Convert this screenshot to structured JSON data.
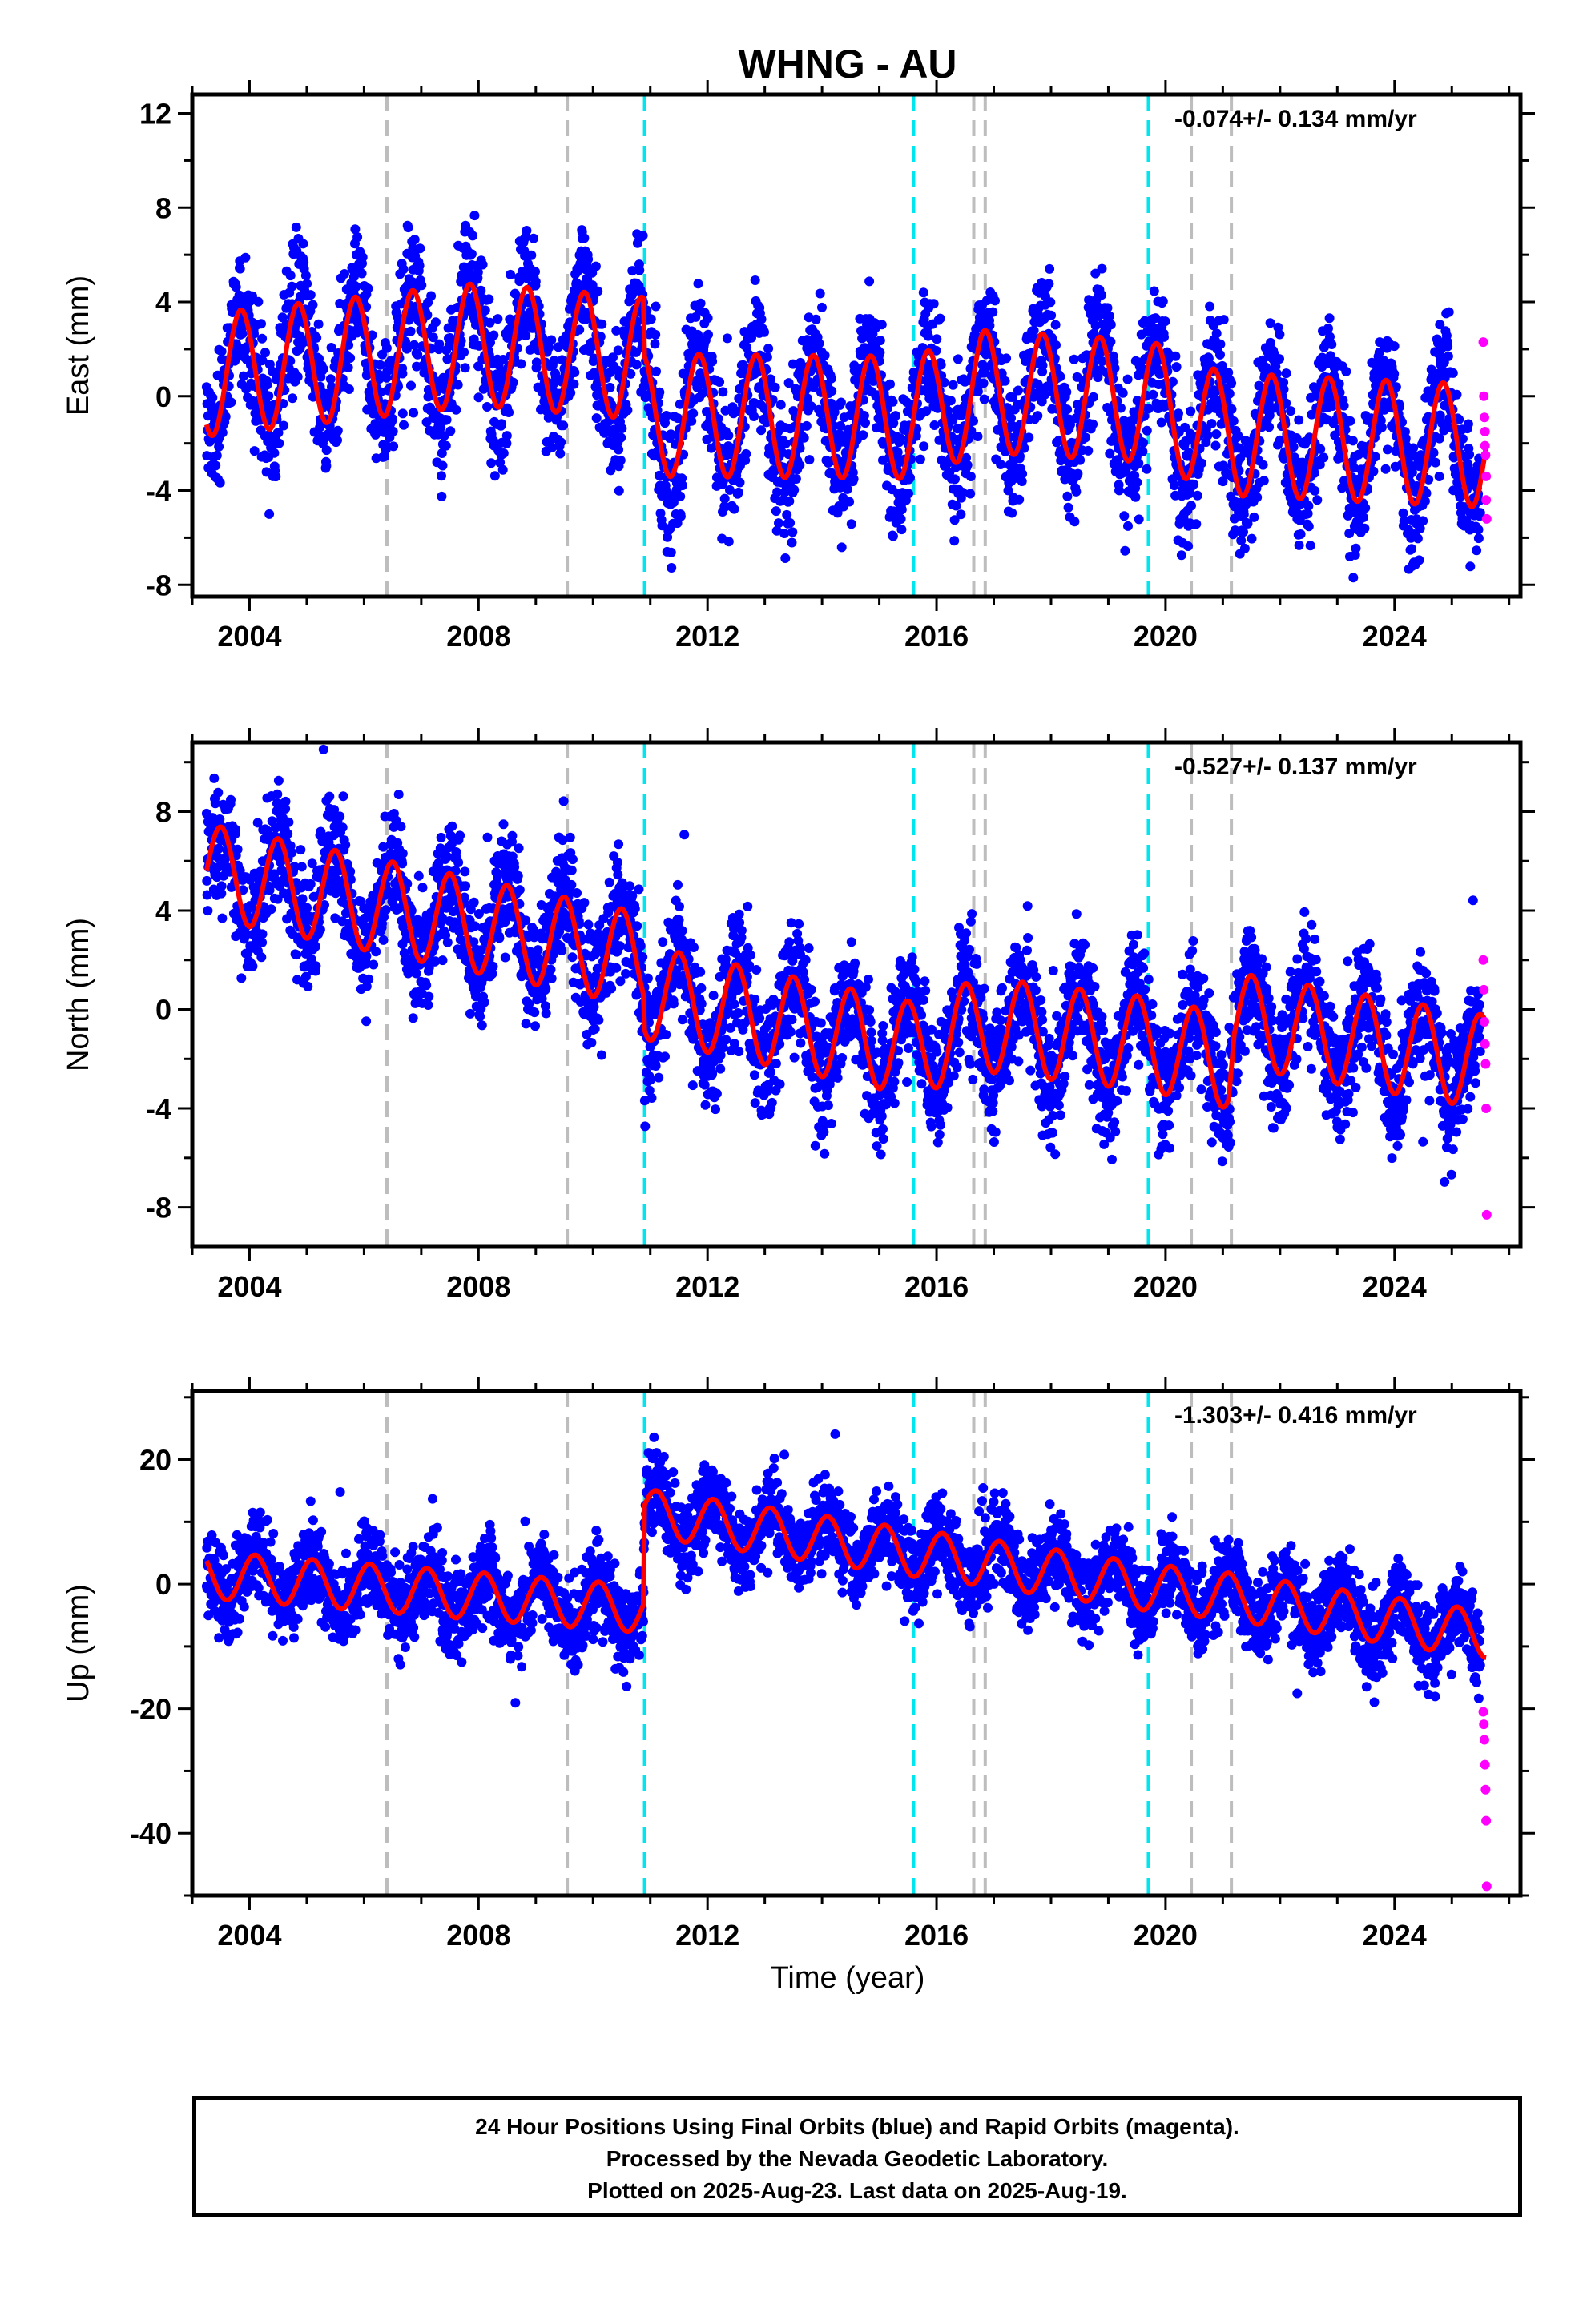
{
  "figure": {
    "title": "WHNG - AU",
    "xlabel": "Time (year)",
    "footer": [
      "24 Hour Positions Using Final Orbits (blue) and Rapid Orbits (magenta).",
      "Processed by the Nevada Geodetic Laboratory.",
      "Plotted on 2025-Aug-23. Last data on 2025-Aug-19."
    ],
    "colors": {
      "final_orbits": "#0000ff",
      "rapid_orbits": "#ff00ff",
      "model_fit": "#ff0000",
      "antenna_change_line": "#00e5ee",
      "equipment_change_line": "#bdbdbd"
    }
  },
  "chart_data": [
    {
      "type": "scatter",
      "component": "East",
      "ylabel": "East (mm)",
      "rate_label": "-0.074+/- 0.134 mm/yr",
      "xlim": [
        2003.0,
        2026.2
      ],
      "ylim": [
        -8.5,
        12.8
      ],
      "x_ticks": [
        2004,
        2008,
        2012,
        2016,
        2020,
        2024
      ],
      "y_ticks": [
        -8,
        -4,
        0,
        4,
        8,
        12
      ],
      "grid": false,
      "series": [
        {
          "name": "Final Orbits",
          "style": "points",
          "start": 2003.25,
          "end": 2025.5,
          "trend": [
            [
              2003.25,
              0.9
            ],
            [
              2008.0,
              2.2
            ],
            [
              2010.88,
              1.6
            ],
            [
              2010.9,
              -0.8
            ],
            [
              2015.6,
              -0.9
            ],
            [
              2016.8,
              0.2
            ],
            [
              2019.7,
              -0.2
            ],
            [
              2021.0,
              -1.6
            ],
            [
              2025.5,
              -2.1
            ]
          ],
          "annual_amplitude": 2.6,
          "annual_peak_fraction": 0.85,
          "scatter": 1.4
        },
        {
          "name": "Rapid Orbits",
          "style": "points",
          "x": [
            2025.55,
            2025.56,
            2025.57,
            2025.58,
            2025.58,
            2025.59,
            2025.6,
            2025.6,
            2025.61
          ],
          "y": [
            2.3,
            0.0,
            -0.9,
            -1.5,
            -2.1,
            -2.5,
            -3.4,
            -4.4,
            -5.2
          ]
        },
        {
          "name": "Model Fit",
          "style": "line",
          "start": 2003.25,
          "end": 2025.6
        }
      ],
      "event_lines": [
        {
          "x": 2006.4,
          "type": "equipment_change"
        },
        {
          "x": 2009.55,
          "type": "equipment_change"
        },
        {
          "x": 2010.9,
          "type": "antenna_change"
        },
        {
          "x": 2015.6,
          "type": "antenna_change"
        },
        {
          "x": 2016.65,
          "type": "equipment_change"
        },
        {
          "x": 2016.85,
          "type": "equipment_change"
        },
        {
          "x": 2019.7,
          "type": "antenna_change"
        },
        {
          "x": 2020.45,
          "type": "equipment_change"
        },
        {
          "x": 2021.15,
          "type": "equipment_change"
        }
      ]
    },
    {
      "type": "scatter",
      "component": "North",
      "ylabel": "North (mm)",
      "rate_label": "-0.527+/- 0.137 mm/yr",
      "xlim": [
        2003.0,
        2026.2
      ],
      "ylim": [
        -9.6,
        10.8
      ],
      "x_ticks": [
        2004,
        2008,
        2012,
        2016,
        2020,
        2024
      ],
      "y_ticks": [
        -8,
        -4,
        0,
        4,
        8
      ],
      "grid": false,
      "series": [
        {
          "name": "Final Orbits",
          "style": "points",
          "start": 2003.25,
          "end": 2025.5,
          "trend": [
            [
              2003.25,
              5.6
            ],
            [
              2010.88,
              2.0
            ],
            [
              2010.9,
              0.7
            ],
            [
              2015.6,
              -1.6
            ],
            [
              2016.8,
              -0.6
            ],
            [
              2019.7,
              -1.4
            ],
            [
              2021.1,
              -2.1
            ],
            [
              2021.2,
              -0.4
            ],
            [
              2025.5,
              -2.1
            ]
          ],
          "annual_amplitude": 1.9,
          "annual_peak_fraction": 0.5,
          "scatter": 1.2
        },
        {
          "name": "Rapid Orbits",
          "style": "points",
          "x": [
            2025.55,
            2025.56,
            2025.57,
            2025.58,
            2025.59,
            2025.6,
            2025.61
          ],
          "y": [
            2.0,
            0.8,
            -0.5,
            -1.4,
            -2.2,
            -4.0,
            -8.3
          ]
        },
        {
          "name": "Model Fit",
          "style": "line",
          "start": 2003.25,
          "end": 2025.6
        }
      ],
      "event_lines": [
        {
          "x": 2006.4,
          "type": "equipment_change"
        },
        {
          "x": 2009.55,
          "type": "equipment_change"
        },
        {
          "x": 2010.9,
          "type": "antenna_change"
        },
        {
          "x": 2015.6,
          "type": "antenna_change"
        },
        {
          "x": 2016.65,
          "type": "equipment_change"
        },
        {
          "x": 2016.85,
          "type": "equipment_change"
        },
        {
          "x": 2019.7,
          "type": "antenna_change"
        },
        {
          "x": 2020.45,
          "type": "equipment_change"
        },
        {
          "x": 2021.15,
          "type": "equipment_change"
        }
      ]
    },
    {
      "type": "scatter",
      "component": "Up",
      "ylabel": "Up (mm)",
      "rate_label": "-1.303+/- 0.416 mm/yr",
      "xlim": [
        2003.0,
        2026.2
      ],
      "ylim": [
        -50,
        31
      ],
      "x_ticks": [
        2004,
        2008,
        2012,
        2016,
        2020,
        2024
      ],
      "y_ticks": [
        -40,
        -20,
        0,
        20
      ],
      "grid": false,
      "series": [
        {
          "name": "Final Orbits",
          "style": "points",
          "start": 2003.25,
          "end": 2025.5,
          "trend": [
            [
              2003.25,
              1.5
            ],
            [
              2010.88,
              -4.0
            ],
            [
              2010.9,
              11.5
            ],
            [
              2015.6,
              5.0
            ],
            [
              2016.8,
              3.5
            ],
            [
              2019.7,
              -0.5
            ],
            [
              2021.1,
              -2.0
            ],
            [
              2025.5,
              -8.0
            ]
          ],
          "annual_amplitude": 3.8,
          "annual_peak_fraction": 0.1,
          "scatter": 3.3
        },
        {
          "name": "Rapid Orbits",
          "style": "points",
          "x": [
            2025.55,
            2025.56,
            2025.57,
            2025.58,
            2025.59,
            2025.6,
            2025.61
          ],
          "y": [
            -20.5,
            -22.5,
            -25.0,
            -29.0,
            -33.0,
            -38.0,
            -48.5
          ]
        },
        {
          "name": "Model Fit",
          "style": "line",
          "start": 2003.25,
          "end": 2025.6
        }
      ],
      "event_lines": [
        {
          "x": 2006.4,
          "type": "equipment_change"
        },
        {
          "x": 2009.55,
          "type": "equipment_change"
        },
        {
          "x": 2010.9,
          "type": "antenna_change"
        },
        {
          "x": 2015.6,
          "type": "antenna_change"
        },
        {
          "x": 2016.65,
          "type": "equipment_change"
        },
        {
          "x": 2016.85,
          "type": "equipment_change"
        },
        {
          "x": 2019.7,
          "type": "antenna_change"
        },
        {
          "x": 2020.45,
          "type": "equipment_change"
        },
        {
          "x": 2021.15,
          "type": "equipment_change"
        }
      ]
    }
  ]
}
